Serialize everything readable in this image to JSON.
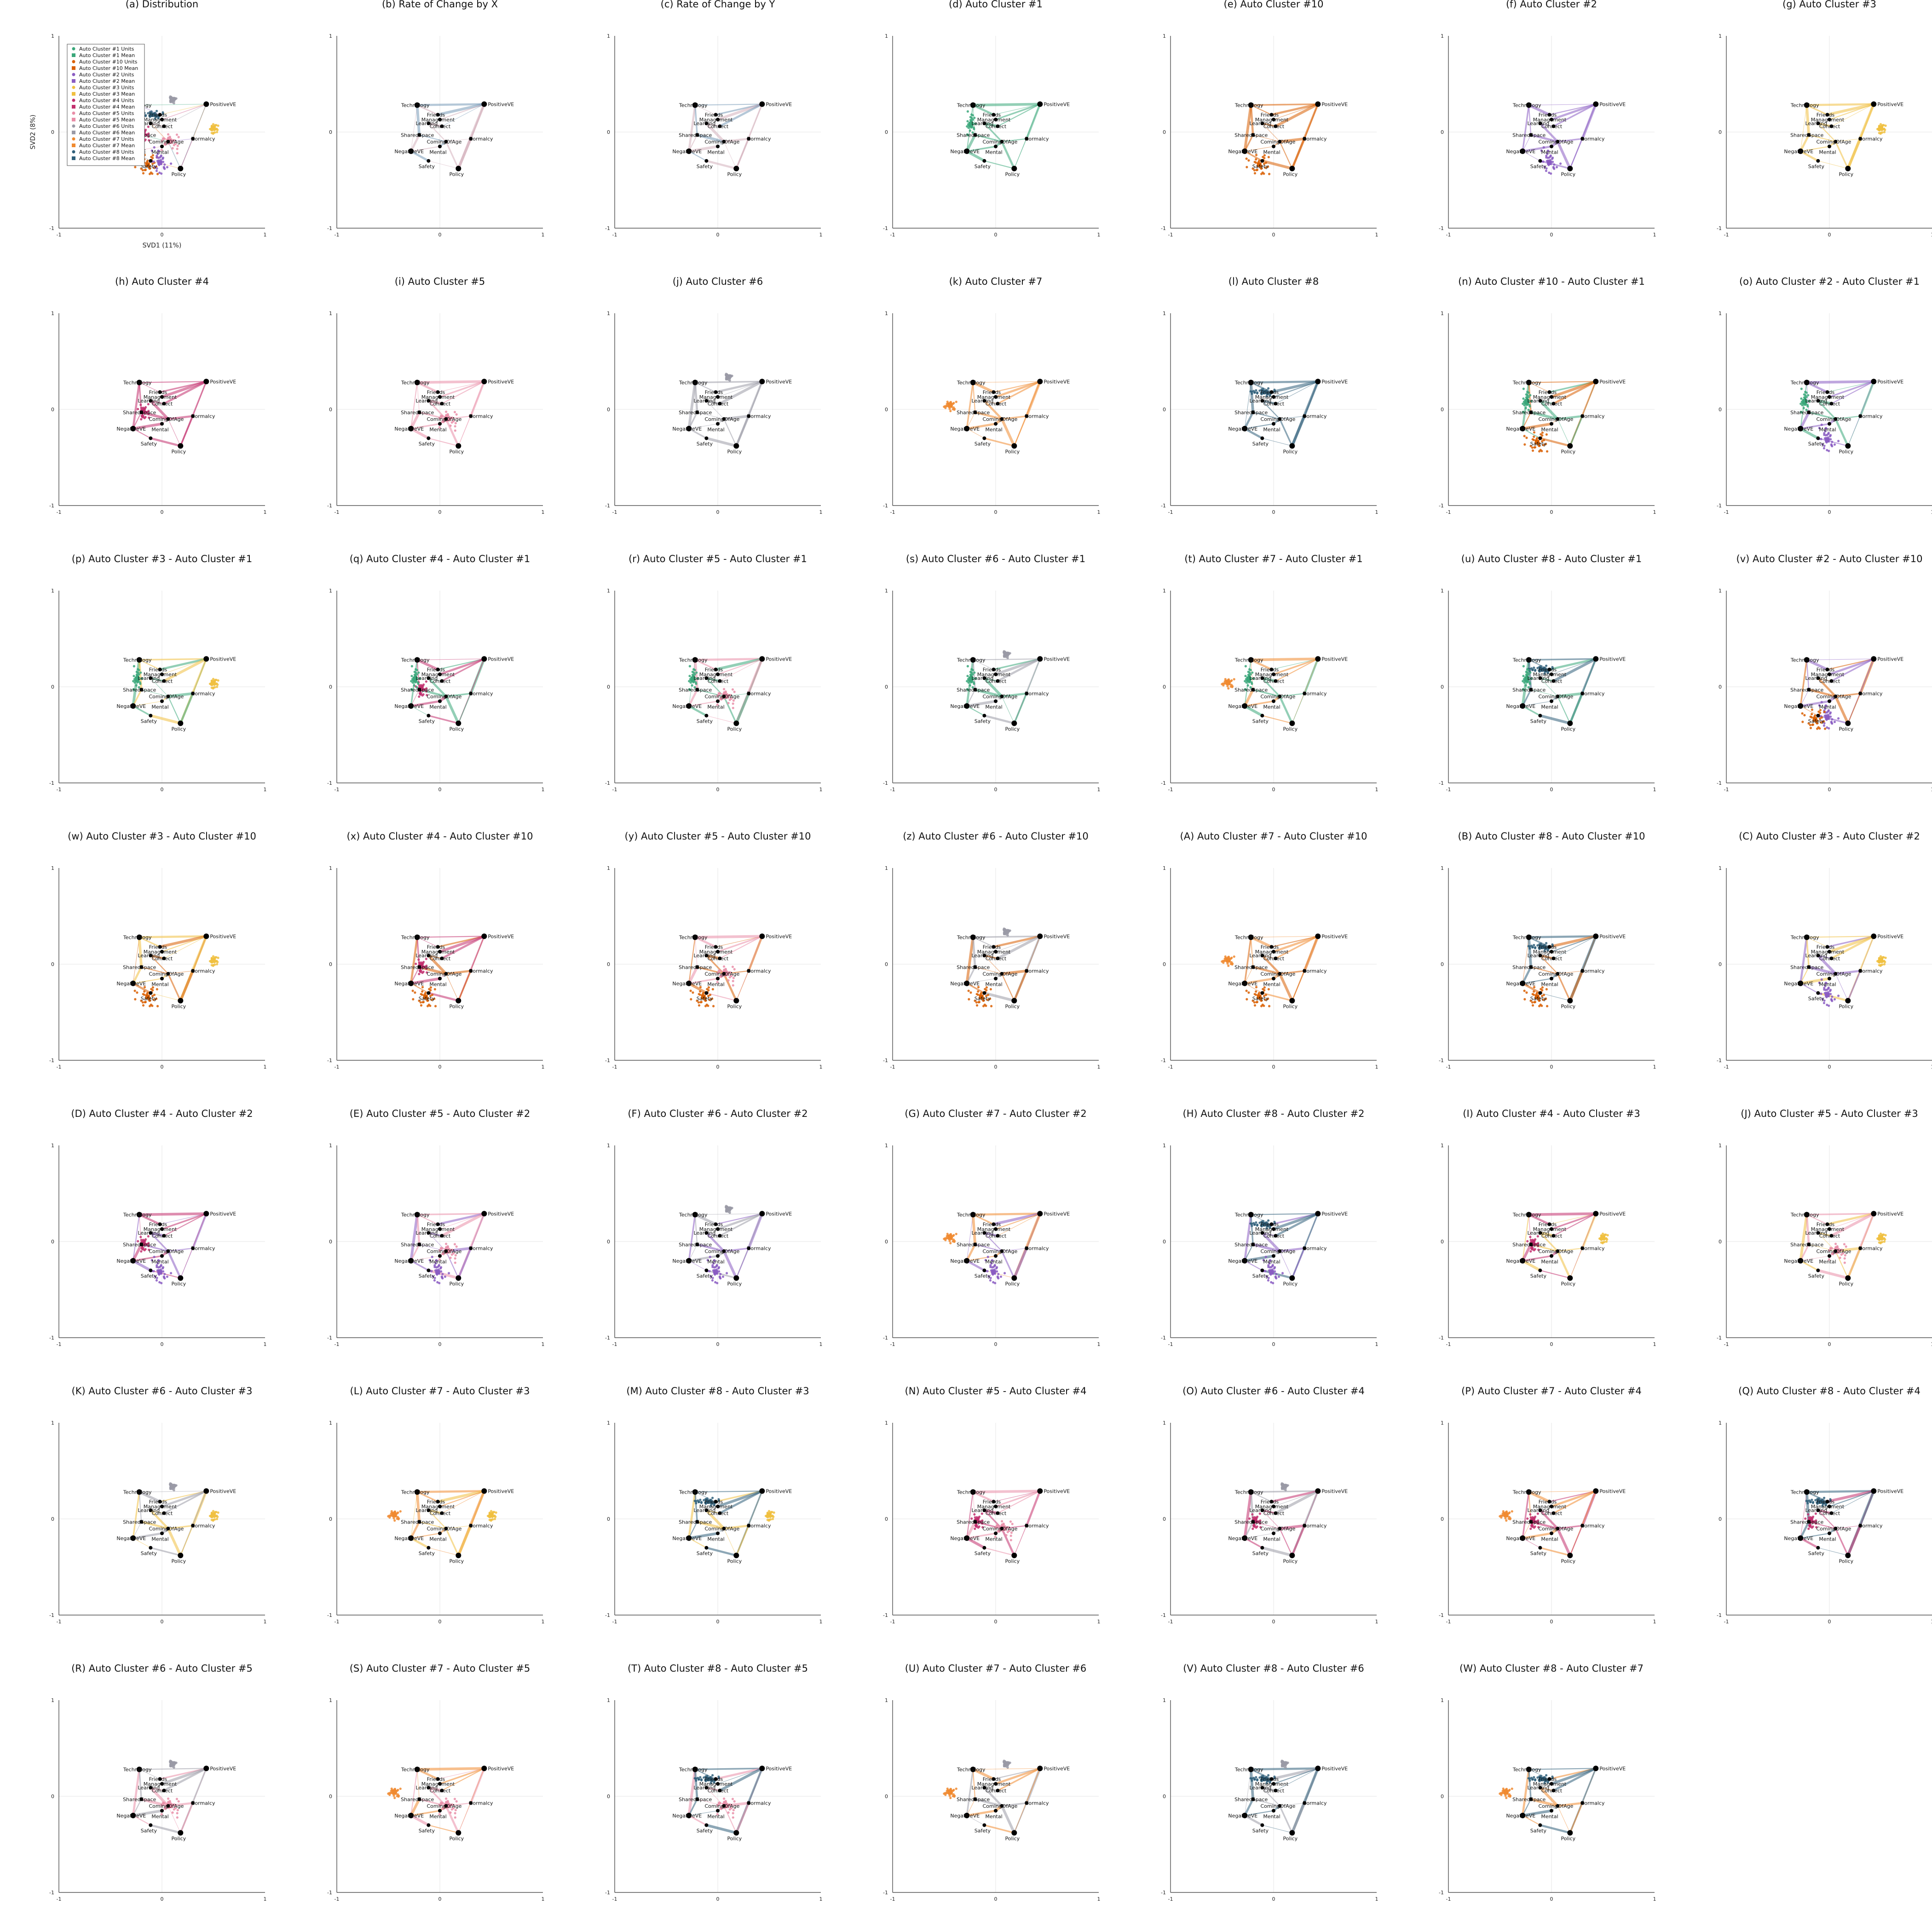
{
  "figure": {
    "panel_titles": [
      "(a) Distribution",
      "(b) Rate of Change by X",
      "(c) Rate of Change by Y",
      "(d) Auto Cluster #1",
      "(e) Auto Cluster #10",
      "(f) Auto Cluster #2",
      "(g) Auto Cluster #3",
      "(h) Auto Cluster #4",
      "(i) Auto Cluster #5",
      "(j) Auto Cluster #6",
      "(k) Auto Cluster #7",
      "(l) Auto Cluster #8",
      "(n) Auto Cluster #10 - Auto Cluster #1",
      "(o) Auto Cluster #2 - Auto Cluster #1",
      "(p) Auto Cluster #3 - Auto Cluster #1",
      "(q) Auto Cluster #4 - Auto Cluster #1",
      "(r) Auto Cluster #5 - Auto Cluster #1",
      "(s) Auto Cluster #6 - Auto Cluster #1",
      "(t) Auto Cluster #7 - Auto Cluster #1",
      "(u) Auto Cluster #8 - Auto Cluster #1",
      "(v) Auto Cluster #2 - Auto Cluster #10",
      "(w) Auto Cluster #3 - Auto Cluster #10",
      "(x) Auto Cluster #4 - Auto Cluster #10",
      "(y) Auto Cluster #5 - Auto Cluster #10",
      "(z) Auto Cluster #6 - Auto Cluster #10",
      "(A) Auto Cluster #7 - Auto Cluster #10",
      "(B) Auto Cluster #8 - Auto Cluster #10",
      "(C) Auto Cluster #3 - Auto Cluster #2",
      "(D) Auto Cluster #4 - Auto Cluster #2",
      "(E) Auto Cluster #5 - Auto Cluster #2",
      "(F) Auto Cluster #6 - Auto Cluster #2",
      "(G) Auto Cluster #7 - Auto Cluster #2",
      "(H) Auto Cluster #8 - Auto Cluster #2",
      "(I) Auto Cluster #4 - Auto Cluster #3",
      "(J) Auto Cluster #5 - Auto Cluster #3",
      "(K) Auto Cluster #6 - Auto Cluster #3",
      "(L) Auto Cluster #7 - Auto Cluster #3",
      "(M) Auto Cluster #8 - Auto Cluster #3",
      "(N) Auto Cluster #5 - Auto Cluster #4",
      "(O) Auto Cluster #6 - Auto Cluster #4",
      "(P) Auto Cluster #7 - Auto Cluster #4",
      "(Q) Auto Cluster #8 - Auto Cluster #4",
      "(R) Auto Cluster #6 - Auto Cluster #5",
      "(S) Auto Cluster #7 - Auto Cluster #5",
      "(T) Auto Cluster #8 - Auto Cluster #5",
      "(U) Auto Cluster #7 - Auto Cluster #6",
      "(V) Auto Cluster #8 - Auto Cluster #6",
      "(W) Auto Cluster #8 - Auto Cluster #7"
    ]
  },
  "chart_data": {
    "type": "scatter",
    "layout": "grid of small-multiple network scatter plots, 7 columns x 7 rows",
    "xlabel": "SVD1 (11%)",
    "ylabel": "SVD2 (8%)",
    "xlim": [
      -1,
      1
    ],
    "ylim": [
      -1,
      1
    ],
    "xticks": [
      "-1",
      "0",
      "1"
    ],
    "yticks": [
      "-1",
      "0",
      "1"
    ],
    "grid": true,
    "legend_placement": "top-left (first panel only)",
    "nodes": [
      {
        "label": "Technology",
        "x": -0.22,
        "y": 0.28
      },
      {
        "label": "Friends",
        "x": -0.02,
        "y": 0.18
      },
      {
        "label": "Management",
        "x": 0.0,
        "y": 0.13
      },
      {
        "label": "Learning",
        "x": -0.11,
        "y": 0.09
      },
      {
        "label": "Connect",
        "x": 0.02,
        "y": 0.06
      },
      {
        "label": "PositiveVE",
        "x": 0.43,
        "y": 0.29
      },
      {
        "label": "SharedSpace",
        "x": -0.2,
        "y": -0.03
      },
      {
        "label": "ComingOfAge",
        "x": 0.06,
        "y": -0.1
      },
      {
        "label": "Normalcy",
        "x": 0.3,
        "y": -0.07
      },
      {
        "label": "Mental",
        "x": 0.0,
        "y": -0.15
      },
      {
        "label": "NegativeVE",
        "x": -0.28,
        "y": -0.2
      },
      {
        "label": "Safety",
        "x": -0.11,
        "y": -0.3
      },
      {
        "label": "Policy",
        "x": 0.18,
        "y": -0.38
      }
    ],
    "edges": [
      [
        0,
        5
      ],
      [
        0,
        10
      ],
      [
        0,
        1
      ],
      [
        1,
        5
      ],
      [
        2,
        5
      ],
      [
        3,
        4
      ],
      [
        4,
        5
      ],
      [
        5,
        8
      ],
      [
        5,
        12
      ],
      [
        6,
        7
      ],
      [
        6,
        10
      ],
      [
        7,
        8
      ],
      [
        7,
        9
      ],
      [
        8,
        12
      ],
      [
        9,
        10
      ],
      [
        10,
        11
      ],
      [
        11,
        12
      ],
      [
        12,
        7
      ],
      [
        0,
        6
      ],
      [
        3,
        7
      ]
    ],
    "series": [
      {
        "name": "Auto Cluster #1 Units",
        "color": "#3aa77a",
        "marker": "circle"
      },
      {
        "name": "Auto Cluster #1 Mean",
        "color": "#3aa77a",
        "marker": "square"
      },
      {
        "name": "Auto Cluster #10 Units",
        "color": "#d95f02",
        "marker": "circle"
      },
      {
        "name": "Auto Cluster #10 Mean",
        "color": "#d95f02",
        "marker": "square"
      },
      {
        "name": "Auto Cluster #2 Units",
        "color": "#8a5cc2",
        "marker": "circle"
      },
      {
        "name": "Auto Cluster #2 Mean",
        "color": "#8a5cc2",
        "marker": "square"
      },
      {
        "name": "Auto Cluster #3 Units",
        "color": "#f0c040",
        "marker": "circle"
      },
      {
        "name": "Auto Cluster #3 Mean",
        "color": "#f0c040",
        "marker": "square"
      },
      {
        "name": "Auto Cluster #4 Units",
        "color": "#c2306e",
        "marker": "circle"
      },
      {
        "name": "Auto Cluster #4 Mean",
        "color": "#c2306e",
        "marker": "square"
      },
      {
        "name": "Auto Cluster #5 Units",
        "color": "#e98ea8",
        "marker": "circle"
      },
      {
        "name": "Auto Cluster #5 Mean",
        "color": "#e98ea8",
        "marker": "square"
      },
      {
        "name": "Auto Cluster #6 Units",
        "color": "#9a9aa6",
        "marker": "circle"
      },
      {
        "name": "Auto Cluster #6 Mean",
        "color": "#9a9aa6",
        "marker": "square"
      },
      {
        "name": "Auto Cluster #7 Units",
        "color": "#f08a30",
        "marker": "circle"
      },
      {
        "name": "Auto Cluster #7 Mean",
        "color": "#f08a30",
        "marker": "square"
      },
      {
        "name": "Auto Cluster #8 Units",
        "color": "#2f5f7a",
        "marker": "circle"
      },
      {
        "name": "Auto Cluster #8 Mean",
        "color": "#2f5f7a",
        "marker": "square"
      }
    ],
    "panel_clusters": [
      "all",
      "rateX",
      "rateY",
      "c1",
      "c10",
      "c2",
      "c3",
      "c4",
      "c5",
      "c6",
      "c7",
      "c8",
      "c10-c1",
      "c2-c1",
      "c3-c1",
      "c4-c1",
      "c5-c1",
      "c6-c1",
      "c7-c1",
      "c8-c1",
      "c2-c10",
      "c3-c10",
      "c4-c10",
      "c5-c10",
      "c6-c10",
      "c7-c10",
      "c8-c10",
      "c3-c2",
      "c4-c2",
      "c5-c2",
      "c6-c2",
      "c7-c2",
      "c8-c2",
      "c4-c3",
      "c5-c3",
      "c6-c3",
      "c7-c3",
      "c8-c3",
      "c5-c4",
      "c6-c4",
      "c7-c4",
      "c8-c4",
      "c6-c5",
      "c7-c5",
      "c8-c5",
      "c7-c6",
      "c8-c6",
      "c8-c7"
    ],
    "clusters": {
      "c1": {
        "color": "#3aa77a",
        "mean": [
          -0.24,
          0.08
        ],
        "spread": [
          0.1,
          0.18
        ]
      },
      "c10": {
        "color": "#d95f02",
        "mean": [
          -0.14,
          -0.34
        ],
        "spread": [
          0.16,
          0.14
        ]
      },
      "c2": {
        "color": "#8a5cc2",
        "mean": [
          -0.02,
          -0.32
        ],
        "spread": [
          0.12,
          0.2
        ]
      },
      "c3": {
        "color": "#f0c040",
        "mean": [
          0.5,
          0.04
        ],
        "spread": [
          0.06,
          0.06
        ]
      },
      "c4": {
        "color": "#c2306e",
        "mean": [
          -0.18,
          -0.02
        ],
        "spread": [
          0.07,
          0.12
        ]
      },
      "c5": {
        "color": "#e98ea8",
        "mean": [
          0.08,
          -0.1
        ],
        "spread": [
          0.14,
          0.14
        ]
      },
      "c6": {
        "color": "#9a9aa6",
        "mean": [
          0.1,
          0.34
        ],
        "spread": [
          0.05,
          0.05
        ]
      },
      "c7": {
        "color": "#f08a30",
        "mean": [
          -0.44,
          0.04
        ],
        "spread": [
          0.07,
          0.08
        ]
      },
      "c8": {
        "color": "#2f5f7a",
        "mean": [
          -0.1,
          0.18
        ],
        "spread": [
          0.18,
          0.06
        ]
      }
    }
  }
}
